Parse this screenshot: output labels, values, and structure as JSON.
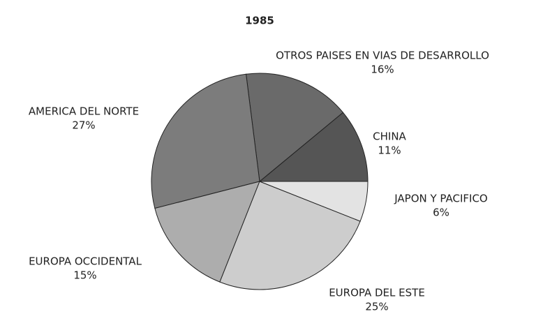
{
  "chart_data": {
    "type": "pie",
    "title": "1985",
    "categories": [
      "CHINA",
      "OTROS PAISES EN VIAS DE DESARROLLO",
      "AMERICA DEL NORTE",
      "EUROPA OCCIDENTAL",
      "EUROPA DEL ESTE",
      "JAPON Y PACIFICO"
    ],
    "values": [
      11,
      16,
      27,
      15,
      25,
      6
    ],
    "value_labels": [
      "11%",
      "16%",
      "27%",
      "15%",
      "25%",
      "6%"
    ],
    "colors": [
      "#555555",
      "#6a6a6a",
      "#7c7c7c",
      "#adadad",
      "#cdcdcd",
      "#e3e3e3"
    ]
  }
}
